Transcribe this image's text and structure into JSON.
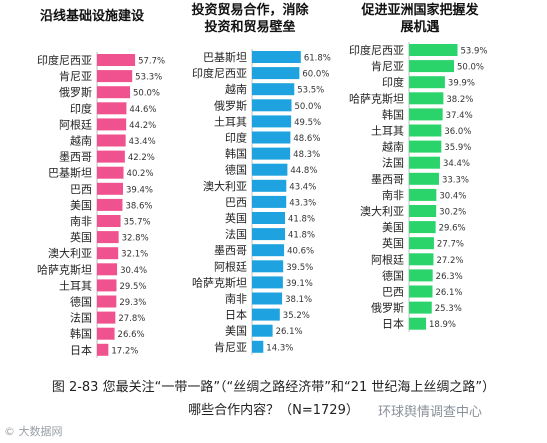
{
  "chart_data": [
    {
      "type": "bar",
      "orientation": "horizontal",
      "title": "沿线基础设施建设",
      "color": "#f0528f",
      "categories": [
        "印度尼西亚",
        "肯尼亚",
        "俄罗斯",
        "印度",
        "阿根廷",
        "越南",
        "墨西哥",
        "巴基斯坦",
        "巴西",
        "美国",
        "南非",
        "英国",
        "澳大利亚",
        "哈萨克斯坦",
        "土耳其",
        "德国",
        "法国",
        "韩国",
        "日本"
      ],
      "values": [
        57.7,
        53.3,
        50.0,
        44.6,
        44.2,
        43.4,
        42.2,
        40.2,
        39.4,
        38.6,
        35.7,
        32.8,
        32.1,
        30.4,
        29.5,
        29.3,
        27.8,
        26.6,
        17.2
      ],
      "value_labels": [
        "57.7%",
        "53.3%",
        "50.0%",
        "44.6%",
        "44.2%",
        "43.4%",
        "42.2%",
        "40.2%",
        "39.4%",
        "38.6%",
        "35.7%",
        "32.8%",
        "32.1%",
        "30.4%",
        "29.5%",
        "29.3%",
        "27.8%",
        "26.6%",
        "17.2%"
      ]
    },
    {
      "type": "bar",
      "orientation": "horizontal",
      "title_lines": [
        "投资贸易合作，消除",
        "投资和贸易壁垒"
      ],
      "color": "#1fa3e0",
      "categories": [
        "巴基斯坦",
        "印度尼西亚",
        "越南",
        "俄罗斯",
        "土耳其",
        "印度",
        "韩国",
        "德国",
        "澳大利亚",
        "巴西",
        "英国",
        "法国",
        "墨西哥",
        "阿根廷",
        "哈萨克斯坦",
        "南非",
        "日本",
        "美国",
        "肯尼亚"
      ],
      "values": [
        61.8,
        60.0,
        53.5,
        50.0,
        49.5,
        48.6,
        48.3,
        44.8,
        43.4,
        43.3,
        41.8,
        41.8,
        40.6,
        39.5,
        39.1,
        38.1,
        35.2,
        26.1,
        14.3
      ],
      "value_labels": [
        "61.8%",
        "60.0%",
        "53.5%",
        "50.0%",
        "49.5%",
        "48.6%",
        "48.3%",
        "44.8%",
        "43.4%",
        "43.3%",
        "41.8%",
        "41.8%",
        "40.6%",
        "39.5%",
        "39.1%",
        "38.1%",
        "35.2%",
        "26.1%",
        "14.3%"
      ]
    },
    {
      "type": "bar",
      "orientation": "horizontal",
      "title_lines": [
        "促进亚洲国家把握发",
        "展机遇"
      ],
      "color": "#2bd46a",
      "categories": [
        "印度尼西亚",
        "肯尼亚",
        "印度",
        "哈萨克斯坦",
        "韩国",
        "土耳其",
        "越南",
        "法国",
        "墨西哥",
        "南非",
        "澳大利亚",
        "美国",
        "英国",
        "阿根廷",
        "德国",
        "巴西",
        "俄罗斯",
        "日本"
      ],
      "values": [
        53.9,
        50.0,
        39.9,
        38.2,
        37.4,
        36.0,
        35.9,
        34.4,
        33.3,
        30.4,
        30.2,
        29.6,
        27.7,
        27.2,
        26.3,
        26.1,
        25.3,
        18.9
      ],
      "value_labels": [
        "53.9%",
        "50.0%",
        "39.9%",
        "38.2%",
        "37.4%",
        "36.0%",
        "35.9%",
        "34.4%",
        "33.3%",
        "30.4%",
        "30.2%",
        "29.6%",
        "27.7%",
        "27.2%",
        "26.3%",
        "26.1%",
        "25.3%",
        "18.9%"
      ]
    }
  ],
  "caption": {
    "line1": "图 2-83  您最关注“一带一路”（“丝绸之路经济带”和“21 世纪海上丝绸之路”）",
    "line2": "哪些合作内容？（N=1729）"
  },
  "watermark": {
    "left": "© 大数据网",
    "right": "环球舆情调查中心"
  }
}
